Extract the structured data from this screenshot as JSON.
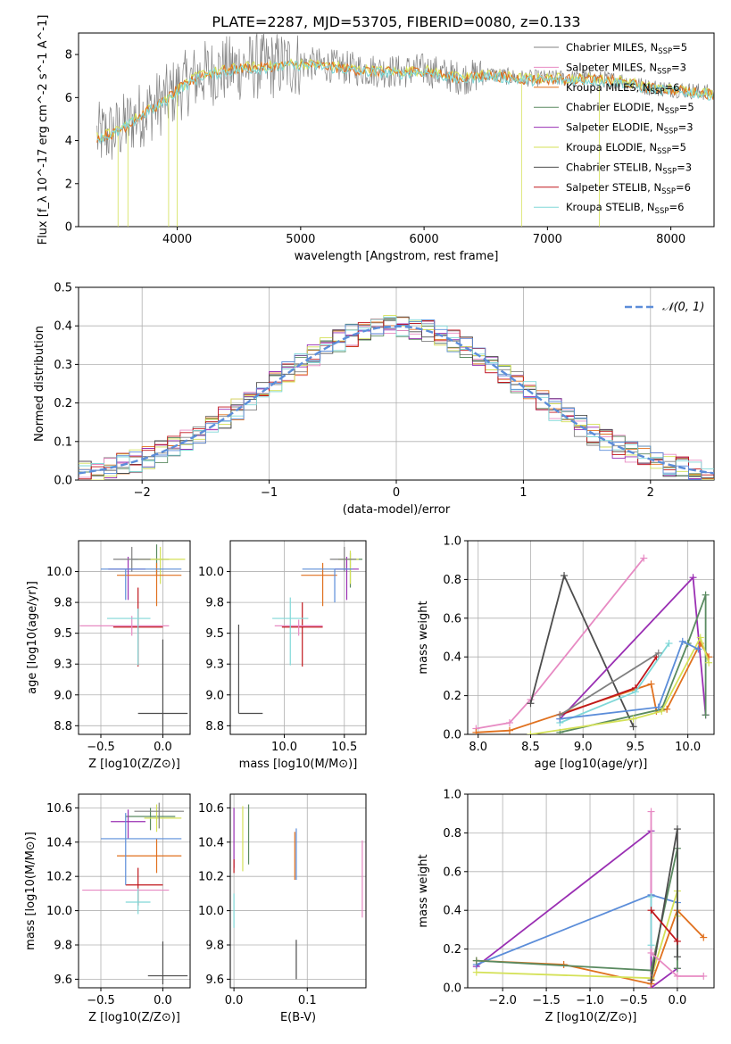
{
  "figure_title": "PLATE=2287, MJD=53705, FIBERID=0080, z=0.133",
  "colors": {
    "Chabrier MILES": "#808080",
    "Salpeter MILES": "#e78ac3",
    "Kroupa MILES": "#e0711f",
    "Chabrier ELODIE": "#5a8a60",
    "Salpeter ELODIE": "#9a2fb3",
    "Kroupa ELODIE": "#d4e157",
    "Chabrier STELIB": "#4d4d4d",
    "Salpeter STELIB": "#c0161c",
    "Kroupa STELIB": "#80d8d8",
    "blue": "#5b8dd9",
    "grid": "#b0b0b0"
  },
  "chart_data": [
    {
      "id": "spectrum",
      "type": "line",
      "title": "PLATE=2287, MJD=53705, FIBERID=0080, z=0.133",
      "xlabel": "wavelength [Angstrom, rest frame]",
      "ylabel": "Flux [f_λ 10^-17 erg cm^-2 s^-1 A^-1]",
      "xlim": [
        3200,
        8350
      ],
      "ylim": [
        0,
        9
      ],
      "xticks": [
        4000,
        5000,
        6000,
        7000,
        8000
      ],
      "yticks": [
        0,
        2,
        4,
        6,
        8
      ],
      "grid": false,
      "legend_position": "top-right",
      "legend": [
        {
          "label": "Chabrier MILES, N",
          "sub": "SSP",
          "n": "=5"
        },
        {
          "label": "Salpeter MILES, N",
          "sub": "SSP",
          "n": "=3"
        },
        {
          "label": "Kroupa MILES, N",
          "sub": "SSP",
          "n": "=6"
        },
        {
          "label": "Chabrier ELODIE, N",
          "sub": "SSP",
          "n": "=5"
        },
        {
          "label": "Salpeter ELODIE, N",
          "sub": "SSP",
          "n": "=3"
        },
        {
          "label": "Kroupa ELODIE, N",
          "sub": "SSP",
          "n": "=5"
        },
        {
          "label": "Chabrier STELIB, N",
          "sub": "SSP",
          "n": "=3"
        },
        {
          "label": "Salpeter STELIB, N",
          "sub": "SSP",
          "n": "=6"
        },
        {
          "label": "Kroupa STELIB, N",
          "sub": "SSP",
          "n": "=6"
        }
      ],
      "continuum": {
        "x": [
          3350,
          3500,
          3700,
          3900,
          4000,
          4200,
          4500,
          4800,
          5000,
          5200,
          5500,
          5800,
          6000,
          6300,
          6500,
          6800,
          7000,
          7300,
          7600,
          7800,
          8000,
          8200,
          8350
        ],
        "y": [
          4.2,
          4.4,
          5.2,
          5.9,
          6.4,
          7.1,
          7.4,
          7.5,
          7.6,
          7.5,
          7.3,
          7.2,
          7.3,
          6.9,
          7.1,
          6.9,
          6.9,
          6.9,
          6.8,
          6.5,
          6.4,
          6.3,
          6.2
        ]
      },
      "drop_lines": [
        3520,
        3600,
        3930,
        4000,
        6790,
        7420
      ]
    },
    {
      "id": "residuals",
      "type": "histogram",
      "xlabel": "(data-model)/error",
      "ylabel": "Normed distribution",
      "xlim": [
        -2.5,
        2.5
      ],
      "ylim": [
        0,
        0.5
      ],
      "xticks": [
        -2,
        -1,
        0,
        1,
        2
      ],
      "yticks": [
        0.0,
        0.1,
        0.2,
        0.3,
        0.4,
        0.5
      ],
      "grid": true,
      "legend_position": "top-right",
      "reference_curve": {
        "name": "N(0,1)",
        "label": "𝒩(0, 1)",
        "mean": 0,
        "sigma": 1
      },
      "bin_width": 0.1
    },
    {
      "id": "age_vs_Z",
      "type": "errorbar",
      "xlabel": "Z [log10(Z/Z⊙)]",
      "ylabel": "age [log10(age/yr)]",
      "xlim": [
        -0.68,
        0.22
      ],
      "ylim": [
        8.68,
        10.25
      ],
      "xticks": [
        -0.5,
        0.0
      ],
      "yticks": [
        8.75,
        9.0,
        9.25,
        9.5,
        9.75,
        10.0
      ],
      "grid": true,
      "points": [
        {
          "model": "Chabrier STELIB",
          "x": 0.0,
          "xerr": [
            0.2,
            0.2
          ],
          "y": 8.85,
          "yerr": [
            0.6,
            0.6
          ]
        },
        {
          "model": "Salpeter STELIB",
          "x": -0.2,
          "xerr": [
            0.2,
            0.2
          ],
          "y": 9.55,
          "yerr": [
            0.32,
            0.32
          ]
        },
        {
          "model": "Salpeter MILES",
          "x": -0.25,
          "xerr": [
            0.42,
            0.3
          ],
          "y": 9.56,
          "yerr": [
            0.08,
            0.08
          ]
        },
        {
          "model": "Kroupa STELIB",
          "x": -0.2,
          "xerr": [
            0.25,
            0.1
          ],
          "y": 9.62,
          "yerr": [
            0.38,
            0.08
          ]
        },
        {
          "model": "Chabrier ELODIE",
          "x": -0.05,
          "xerr": [
            0.2,
            0.1
          ],
          "y": 10.1,
          "yerr": [
            0.13,
            0.12
          ]
        },
        {
          "model": "Kroupa ELODIE",
          "x": -0.02,
          "xerr": [
            0.18,
            0.2
          ],
          "y": 10.1,
          "yerr": [
            0.2,
            0.1
          ]
        },
        {
          "model": "Salpeter ELODIE",
          "x": -0.28,
          "xerr": [
            0.16,
            0.14
          ],
          "y": 10.02,
          "yerr": [
            0.25,
            0.1
          ]
        },
        {
          "model": "Chabrier MILES",
          "x": -0.25,
          "xerr": [
            0.15,
            0.15
          ],
          "y": 10.1,
          "yerr": [
            0.1,
            0.1
          ]
        },
        {
          "model": "Kroupa MILES",
          "x": -0.05,
          "xerr": [
            0.32,
            0.2
          ],
          "y": 9.97,
          "yerr": [
            0.25,
            0.1
          ]
        },
        {
          "model": "blue",
          "x": -0.3,
          "xerr": [
            0.2,
            0.45
          ],
          "y": 10.02,
          "yerr": [
            0.25,
            0.0
          ]
        }
      ]
    },
    {
      "id": "age_vs_mass",
      "type": "errorbar",
      "xlabel": "mass [log10(M/M⊙)]",
      "ylabel": "",
      "xlim": [
        9.55,
        10.68
      ],
      "ylim": [
        8.68,
        10.25
      ],
      "xticks": [
        10.0,
        10.5
      ],
      "yticks": [
        8.75,
        9.0,
        9.25,
        9.5,
        9.75,
        10.0
      ],
      "grid": true,
      "points": [
        {
          "model": "Chabrier STELIB",
          "x": 9.62,
          "xerr": [
            0.0,
            0.2
          ],
          "y": 8.85,
          "yerr": [
            0.0,
            0.72
          ]
        },
        {
          "model": "Salpeter STELIB",
          "x": 10.15,
          "xerr": [
            0.17,
            0.17
          ],
          "y": 9.55,
          "yerr": [
            0.32,
            0.2
          ]
        },
        {
          "model": "Salpeter MILES",
          "x": 10.12,
          "xerr": [
            0.2,
            0.2
          ],
          "y": 9.56,
          "yerr": [
            0.08,
            0.05
          ]
        },
        {
          "model": "Kroupa STELIB",
          "x": 10.05,
          "xerr": [
            0.15,
            0.15
          ],
          "y": 9.62,
          "yerr": [
            0.38,
            0.17
          ]
        },
        {
          "model": "Chabrier ELODIE",
          "x": 10.55,
          "xerr": [
            0.1,
            0.1
          ],
          "y": 10.1,
          "yerr": [
            0.23,
            0.05
          ]
        },
        {
          "model": "Kroupa ELODIE",
          "x": 10.55,
          "xerr": [
            0.1,
            0.07
          ],
          "y": 10.1,
          "yerr": [
            0.2,
            0.07
          ]
        },
        {
          "model": "Salpeter ELODIE",
          "x": 10.52,
          "xerr": [
            0.1,
            0.1
          ],
          "y": 10.02,
          "yerr": [
            0.25,
            0.1
          ]
        },
        {
          "model": "Chabrier MILES",
          "x": 10.5,
          "xerr": [
            0.12,
            0.1
          ],
          "y": 10.1,
          "yerr": [
            0.1,
            0.1
          ]
        },
        {
          "model": "Kroupa MILES",
          "x": 10.32,
          "xerr": [
            0.18,
            0.12
          ],
          "y": 9.97,
          "yerr": [
            0.25,
            0.1
          ]
        },
        {
          "model": "blue",
          "x": 10.42,
          "xerr": [
            0.27,
            0.15
          ],
          "y": 10.02,
          "yerr": [
            0.27,
            0.0
          ]
        }
      ]
    },
    {
      "id": "weight_vs_age",
      "type": "line",
      "xlabel": "age [log10(age/yr)]",
      "ylabel": "mass weight",
      "xlim": [
        7.9,
        10.25
      ],
      "ylim": [
        0,
        1.0
      ],
      "xticks": [
        8.0,
        8.5,
        9.0,
        9.5,
        10.0
      ],
      "yticks": [
        0.0,
        0.2,
        0.4,
        0.6,
        0.8,
        1.0
      ],
      "grid": true,
      "series": [
        {
          "model": "Salpeter MILES",
          "x": [
            7.98,
            8.3,
            8.5,
            9.58
          ],
          "y": [
            0.03,
            0.06,
            0.18,
            0.91
          ]
        },
        {
          "model": "Chabrier STELIB",
          "x": [
            8.5,
            8.82,
            9.48
          ],
          "y": [
            0.16,
            0.82,
            0.04
          ]
        },
        {
          "model": "Salpeter ELODIE",
          "x": [
            8.78,
            10.05,
            10.17
          ],
          "y": [
            0.08,
            0.81,
            0.1
          ]
        },
        {
          "model": "Kroupa MILES",
          "x": [
            7.98,
            8.3,
            9.65,
            9.7,
            9.8,
            10.12,
            10.2
          ],
          "y": [
            0.01,
            0.02,
            0.26,
            0.12,
            0.13,
            0.47,
            0.4
          ]
        },
        {
          "model": "Chabrier ELODIE",
          "x": [
            8.78,
            9.75,
            10.0,
            10.17,
            10.17
          ],
          "y": [
            0.01,
            0.13,
            0.47,
            0.72,
            0.1
          ]
        },
        {
          "model": "Kroupa ELODIE",
          "x": [
            8.5,
            9.48,
            9.75,
            10.12,
            10.2
          ],
          "y": [
            0.0,
            0.08,
            0.12,
            0.5,
            0.37
          ]
        },
        {
          "model": "Salpeter STELIB",
          "x": [
            8.78,
            9.5,
            9.7
          ],
          "y": [
            0.1,
            0.24,
            0.4
          ]
        },
        {
          "model": "Kroupa STELIB",
          "x": [
            8.78,
            9.5,
            9.82
          ],
          "y": [
            0.06,
            0.22,
            0.47
          ]
        },
        {
          "model": "blue",
          "x": [
            8.78,
            9.72,
            9.95,
            10.1
          ],
          "y": [
            0.08,
            0.14,
            0.48,
            0.44
          ]
        },
        {
          "model": "Chabrier MILES",
          "x": [
            8.78,
            9.72
          ],
          "y": [
            0.1,
            0.42
          ]
        }
      ]
    },
    {
      "id": "mass_vs_Z",
      "type": "errorbar",
      "xlabel": "Z [log10(Z/Z⊙)]",
      "ylabel": "mass [log10(M/M⊙)]",
      "xlim": [
        -0.68,
        0.22
      ],
      "ylim": [
        9.55,
        10.68
      ],
      "xticks": [
        -0.5,
        0.0
      ],
      "yticks": [
        9.6,
        9.8,
        10.0,
        10.2,
        10.4,
        10.6
      ],
      "grid": true,
      "points": [
        {
          "model": "Chabrier STELIB",
          "x": 0.0,
          "xerr": [
            0.12,
            0.2
          ],
          "y": 9.62,
          "yerr": [
            0.05,
            0.2
          ]
        },
        {
          "model": "Salpeter STELIB",
          "x": -0.2,
          "xerr": [
            0.1,
            0.2
          ],
          "y": 10.15,
          "yerr": [
            0.12,
            0.1
          ]
        },
        {
          "model": "Salpeter MILES",
          "x": -0.25,
          "xerr": [
            0.4,
            0.3
          ],
          "y": 10.12,
          "yerr": [
            0.0,
            0.0
          ]
        },
        {
          "model": "Kroupa STELIB",
          "x": -0.2,
          "xerr": [
            0.1,
            0.1
          ],
          "y": 10.05,
          "yerr": [
            0.07,
            0.08
          ]
        },
        {
          "model": "Chabrier ELODIE",
          "x": -0.1,
          "xerr": [
            0.2,
            0.2
          ],
          "y": 10.55,
          "yerr": [
            0.08,
            0.05
          ]
        },
        {
          "model": "Kroupa ELODIE",
          "x": -0.05,
          "xerr": [
            0.1,
            0.2
          ],
          "y": 10.54,
          "yerr": [
            0.08,
            0.08
          ]
        },
        {
          "model": "Salpeter ELODIE",
          "x": -0.28,
          "xerr": [
            0.14,
            0.14
          ],
          "y": 10.52,
          "yerr": [
            0.1,
            0.07
          ]
        },
        {
          "model": "Chabrier MILES",
          "x": -0.03,
          "xerr": [
            0.2,
            0.2
          ],
          "y": 10.58,
          "yerr": [
            0.1,
            0.05
          ]
        },
        {
          "model": "Kroupa MILES",
          "x": -0.05,
          "xerr": [
            0.32,
            0.2
          ],
          "y": 10.32,
          "yerr": [
            0.1,
            0.1
          ]
        },
        {
          "model": "blue",
          "x": -0.3,
          "xerr": [
            0.2,
            0.45
          ],
          "y": 10.42,
          "yerr": [
            0.27,
            0.15
          ]
        }
      ]
    },
    {
      "id": "mass_vs_ebv",
      "type": "errorbar",
      "xlabel": "E(B-V)",
      "ylabel": "",
      "xlim": [
        -0.005,
        0.18
      ],
      "ylim": [
        9.55,
        10.68
      ],
      "xticks": [
        0.0,
        0.1
      ],
      "yticks": [
        9.6,
        9.8,
        10.0,
        10.2,
        10.4,
        10.6
      ],
      "grid": true,
      "points": [
        {
          "model": "Chabrier STELIB",
          "x": 0.085,
          "xerr": [
            0,
            0
          ],
          "y": 9.7,
          "yerr": [
            0.1,
            0.13
          ]
        },
        {
          "model": "Salpeter ELODIE",
          "x": 0.0,
          "xerr": [
            0,
            0
          ],
          "y": 10.45,
          "yerr": [
            0.2,
            0.15
          ]
        },
        {
          "model": "Salpeter STELIB",
          "x": 0.0,
          "xerr": [
            0,
            0
          ],
          "y": 10.25,
          "yerr": [
            0.03,
            0.05
          ]
        },
        {
          "model": "Kroupa ELODIE",
          "x": 0.012,
          "xerr": [
            0,
            0
          ],
          "y": 10.43,
          "yerr": [
            0.2,
            0.18
          ]
        },
        {
          "model": "Chabrier ELODIE",
          "x": 0.02,
          "xerr": [
            0,
            0
          ],
          "y": 10.45,
          "yerr": [
            0.18,
            0.17
          ]
        },
        {
          "model": "Kroupa STELIB",
          "x": 0.0,
          "xerr": [
            0,
            0
          ],
          "y": 10.0,
          "yerr": [
            0.1,
            0.1
          ]
        },
        {
          "model": "Kroupa MILES",
          "x": 0.083,
          "xerr": [
            0,
            0
          ],
          "y": 10.3,
          "yerr": [
            0.12,
            0.16
          ]
        },
        {
          "model": "blue",
          "x": 0.085,
          "xerr": [
            0,
            0
          ],
          "y": 10.3,
          "yerr": [
            0.12,
            0.18
          ]
        },
        {
          "model": "Salpeter MILES",
          "x": 0.175,
          "xerr": [
            0,
            0
          ],
          "y": 10.18,
          "yerr": [
            0.22,
            0.23
          ]
        }
      ]
    },
    {
      "id": "weight_vs_Z",
      "type": "line",
      "xlabel": "Z [log10(Z/Z⊙)]",
      "ylabel": "mass weight",
      "xlim": [
        -2.4,
        0.42
      ],
      "ylim": [
        0,
        1.0
      ],
      "xticks": [
        -2.0,
        -1.5,
        -1.0,
        -0.5,
        0.0
      ],
      "yticks": [
        0.0,
        0.2,
        0.4,
        0.6,
        0.8,
        1.0
      ],
      "grid": true,
      "series": [
        {
          "model": "Salpeter ELODIE",
          "x": [
            -2.3,
            -0.3,
            -0.3,
            0.0
          ],
          "y": [
            0.11,
            0.81,
            0.0,
            0.1
          ]
        },
        {
          "model": "blue",
          "x": [
            -2.3,
            -0.3,
            0.0
          ],
          "y": [
            0.12,
            0.48,
            0.44
          ]
        },
        {
          "model": "Kroupa MILES",
          "x": [
            -2.3,
            -1.3,
            -0.3,
            0.0,
            0.3
          ],
          "y": [
            0.14,
            0.12,
            0.02,
            0.4,
            0.26
          ]
        },
        {
          "model": "Chabrier ELODIE",
          "x": [
            -2.3,
            -0.3,
            0.0,
            0.0
          ],
          "y": [
            0.14,
            0.09,
            0.72,
            0.1
          ]
        },
        {
          "model": "Kroupa ELODIE",
          "x": [
            -2.3,
            -0.3,
            0.0,
            0.0
          ],
          "y": [
            0.08,
            0.05,
            0.5,
            0.37
          ]
        },
        {
          "model": "Chabrier STELIB",
          "x": [
            -0.3,
            0.0,
            0.0
          ],
          "y": [
            0.04,
            0.82,
            0.16
          ]
        },
        {
          "model": "Salpeter MILES",
          "x": [
            -0.3,
            -0.3,
            0.0,
            0.3
          ],
          "y": [
            0.91,
            0.18,
            0.06,
            0.06
          ]
        },
        {
          "model": "Kroupa STELIB",
          "x": [
            -0.3,
            -0.3
          ],
          "y": [
            0.22,
            0.47
          ]
        },
        {
          "model": "Salpeter STELIB",
          "x": [
            -0.3,
            0.0
          ],
          "y": [
            0.4,
            0.24
          ]
        }
      ]
    }
  ]
}
